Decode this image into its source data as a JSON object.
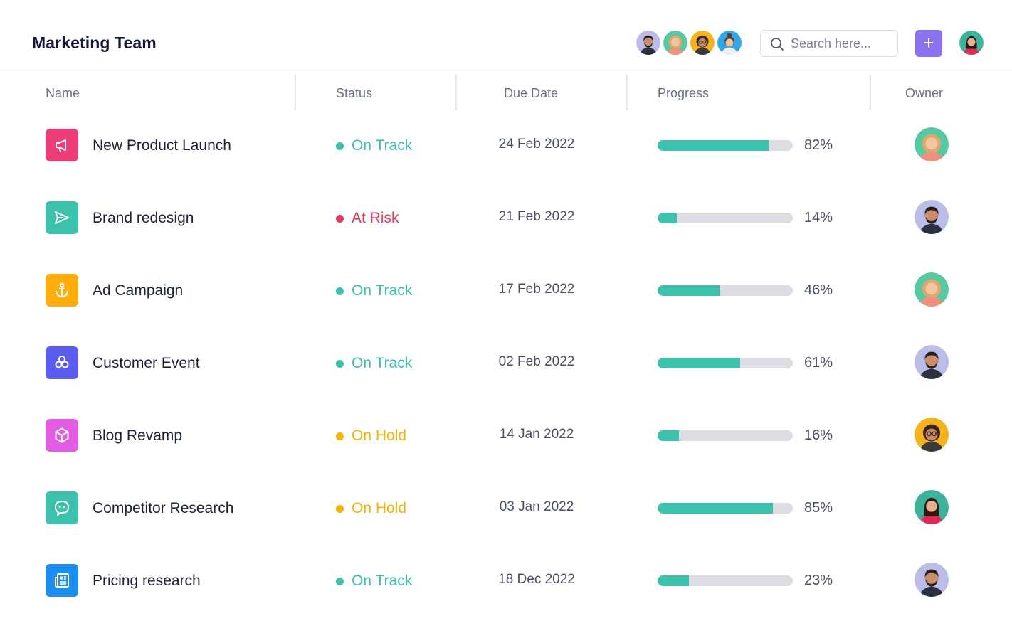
{
  "header": {
    "title": "Marketing Team",
    "search_placeholder": "Search here...",
    "add_label": "+",
    "team_avatars": [
      "man-beard",
      "woman-curly-red",
      "woman-glasses",
      "woman-bun"
    ],
    "current_user_avatar": "woman-dark-hair"
  },
  "columns": {
    "name": "Name",
    "status": "Status",
    "due": "Due Date",
    "progress": "Progress",
    "owner": "Owner"
  },
  "colors": {
    "accent": "#8b72f0",
    "on_track": "#3cc1ad",
    "at_risk": "#e8375a",
    "on_hold": "#f5b400",
    "progress_fill": "#3cc1ad",
    "progress_track": "#dcdde2"
  },
  "rows": [
    {
      "name": "New Product Launch",
      "icon": "megaphone-icon",
      "icon_color": "#ee3d79",
      "status": "On Track",
      "status_color": "#3cc1ad",
      "due": "24 Feb 2022",
      "progress": 82,
      "progress_label": "82%",
      "owner": "woman-curly-red"
    },
    {
      "name": "Brand redesign",
      "icon": "send-icon",
      "icon_color": "#3cc1ad",
      "status": "At Risk",
      "status_color": "#e8375a",
      "due": "21 Feb 2022",
      "progress": 14,
      "progress_label": "14%",
      "owner": "man-beard"
    },
    {
      "name": "Ad Campaign",
      "icon": "anchor-icon",
      "icon_color": "#ffad0d",
      "status": "On Track",
      "status_color": "#3cc1ad",
      "due": "17 Feb 2022",
      "progress": 46,
      "progress_label": "46%",
      "owner": "woman-curly-red"
    },
    {
      "name": "Customer Event",
      "icon": "flower-icon",
      "icon_color": "#5b5cf0",
      "status": "On Track",
      "status_color": "#3cc1ad",
      "due": "02 Feb 2022",
      "progress": 61,
      "progress_label": "61%",
      "owner": "man-beard"
    },
    {
      "name": "Blog Revamp",
      "icon": "cube-icon",
      "icon_color": "#e15ce3",
      "status": "On Hold",
      "status_color": "#f5b400",
      "due": "14 Jan 2022",
      "progress": 16,
      "progress_label": "16%",
      "owner": "woman-glasses"
    },
    {
      "name": "Competitor Research",
      "icon": "quote-bubble-icon",
      "icon_color": "#3cc1ad",
      "status": "On Hold",
      "status_color": "#f5b400",
      "due": "03 Jan 2022",
      "progress": 85,
      "progress_label": "85%",
      "owner": "woman-dark-hair"
    },
    {
      "name": "Pricing research",
      "icon": "newspaper-icon",
      "icon_color": "#1c8ef0",
      "status": "On Track",
      "status_color": "#3cc1ad",
      "due": "18 Dec 2022",
      "progress": 23,
      "progress_label": "23%",
      "owner": "man-beard"
    }
  ]
}
